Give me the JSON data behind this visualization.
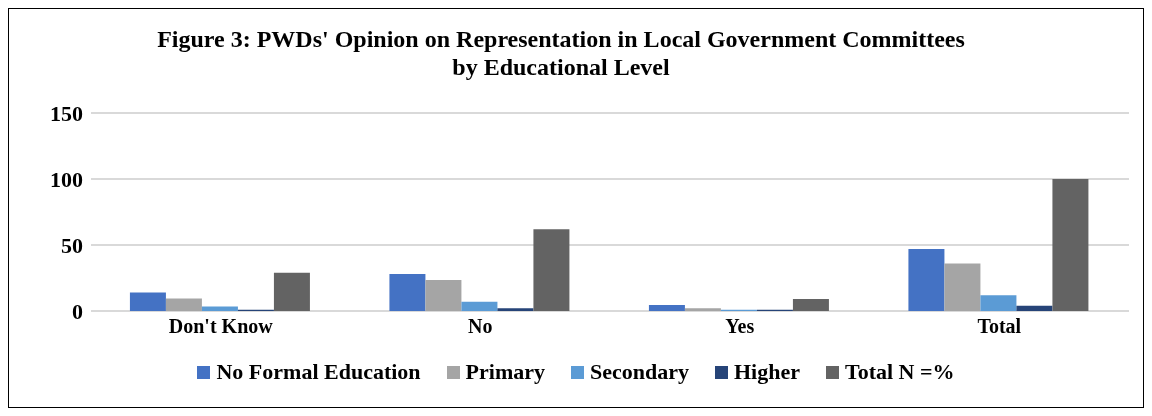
{
  "chart_data": {
    "type": "bar",
    "title": "Figure 3: PWDs' Opinion on Representation in Local Government Committees by Educational Level",
    "categories": [
      "Don't Know",
      "No",
      "Yes",
      "Total"
    ],
    "series": [
      {
        "name": "No Formal Education",
        "color": "#4472c4",
        "values": [
          14,
          28,
          4.5,
          47
        ]
      },
      {
        "name": "Primary",
        "color": "#a5a5a5",
        "values": [
          9.5,
          23.5,
          2,
          36
        ]
      },
      {
        "name": "Secondary",
        "color": "#5b9bd5",
        "values": [
          3.5,
          7,
          1,
          12
        ]
      },
      {
        "name": "Higher",
        "color": "#264478",
        "values": [
          1,
          2,
          1,
          4
        ]
      },
      {
        "name": "Total N =%",
        "color": "#636363",
        "values": [
          29,
          62,
          9,
          100
        ]
      }
    ],
    "ylim": [
      0,
      150
    ],
    "yticks": [
      0,
      50,
      100,
      150
    ],
    "grid": "y",
    "legend": "bottom"
  }
}
